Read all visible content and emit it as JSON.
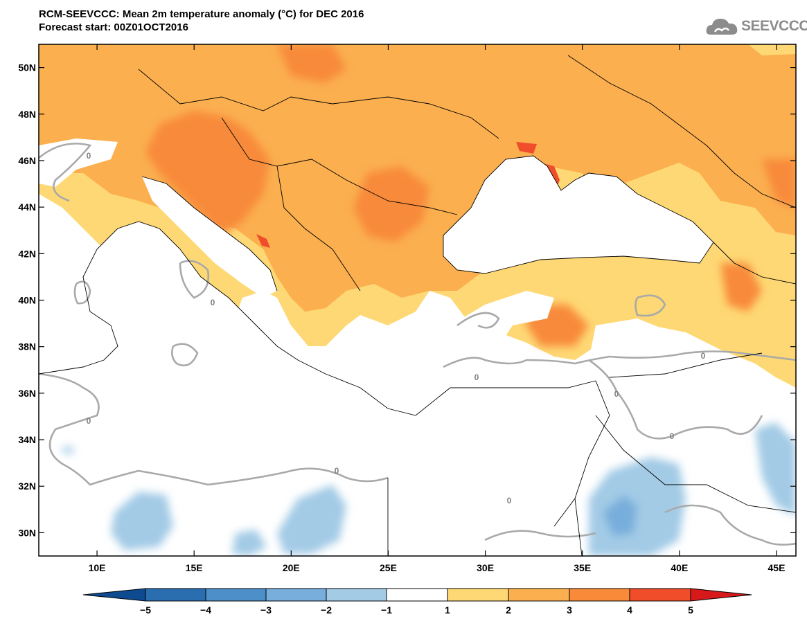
{
  "header": {
    "title": "RCM-SEEVCCC: Mean 2m temperature anomaly (°C) for DEC 2016",
    "subtitle": "Forecast start: 00Z01OCT2016"
  },
  "logo": {
    "text": "SEEVCCC",
    "icon": "cloud-icon",
    "color": "#8c8c8c"
  },
  "map_data": {
    "type": "filled-contour-map",
    "variable": "2m temperature anomaly",
    "units": "°C",
    "lon_range": [
      7,
      46
    ],
    "lat_range": [
      29,
      51
    ],
    "lon_ticks": [
      {
        "value": 10,
        "label": "10E"
      },
      {
        "value": 15,
        "label": "15E"
      },
      {
        "value": 20,
        "label": "20E"
      },
      {
        "value": 25,
        "label": "25E"
      },
      {
        "value": 30,
        "label": "30E"
      },
      {
        "value": 35,
        "label": "35E"
      },
      {
        "value": 40,
        "label": "40E"
      },
      {
        "value": 45,
        "label": "45E"
      }
    ],
    "lat_ticks": [
      {
        "value": 30,
        "label": "30N"
      },
      {
        "value": 32,
        "label": "32N"
      },
      {
        "value": 34,
        "label": "34N"
      },
      {
        "value": 36,
        "label": "36N"
      },
      {
        "value": 38,
        "label": "38N"
      },
      {
        "value": 40,
        "label": "40N"
      },
      {
        "value": 42,
        "label": "42N"
      },
      {
        "value": 44,
        "label": "44N"
      },
      {
        "value": 46,
        "label": "46N"
      },
      {
        "value": 48,
        "label": "48N"
      },
      {
        "value": 50,
        "label": "50N"
      }
    ],
    "zero_contour_label": "0",
    "colorbar": {
      "ticks": [
        "−5",
        "−4",
        "−3",
        "−2",
        "−1",
        "1",
        "2",
        "3",
        "4",
        "5"
      ],
      "colors": [
        "#0d4a8f",
        "#2a6eb0",
        "#4d8fc8",
        "#78aedb",
        "#a3cbe6",
        "#ffffff",
        "#fed874",
        "#fbaf4f",
        "#f88a3a",
        "#f04e2a",
        "#d7191c"
      ]
    },
    "palette": {
      "white": "#ffffff",
      "light_yellow": "#fed874",
      "orange": "#fbaf4f",
      "dark_orange": "#f88a3a",
      "red": "#f04e2a",
      "light_blue": "#a3cbe6",
      "mid_blue": "#78aedb",
      "contour_gray": "#a9a9a9"
    }
  }
}
